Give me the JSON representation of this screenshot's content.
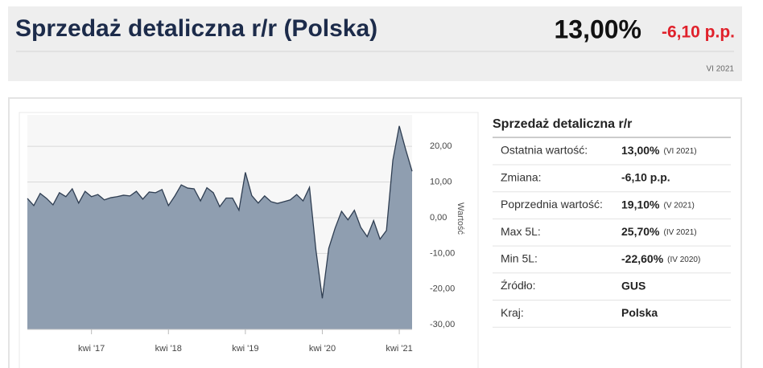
{
  "header": {
    "title": "Sprzedaż detaliczna r/r (Polska)",
    "value": "13,00%",
    "change": "-6,10 p.p.",
    "date": "VI 2021"
  },
  "chart_data": {
    "type": "area",
    "color": "#8f9eb0",
    "line_color": "#2f3e52",
    "grid": true,
    "y_label": "Wartość",
    "x": [
      "2016-06",
      "2016-07",
      "2016-08",
      "2016-09",
      "2016-10",
      "2016-11",
      "2016-12",
      "2017-01",
      "2017-02",
      "2017-03",
      "2017-04",
      "2017-05",
      "2017-06",
      "2017-07",
      "2017-08",
      "2017-09",
      "2017-10",
      "2017-11",
      "2017-12",
      "2018-01",
      "2018-02",
      "2018-03",
      "2018-04",
      "2018-05",
      "2018-06",
      "2018-07",
      "2018-08",
      "2018-09",
      "2018-10",
      "2018-11",
      "2018-12",
      "2019-01",
      "2019-02",
      "2019-03",
      "2019-04",
      "2019-05",
      "2019-06",
      "2019-07",
      "2019-08",
      "2019-09",
      "2019-10",
      "2019-11",
      "2019-12",
      "2020-01",
      "2020-02",
      "2020-03",
      "2020-04",
      "2020-05",
      "2020-06",
      "2020-07",
      "2020-08",
      "2020-09",
      "2020-10",
      "2020-11",
      "2020-12",
      "2021-01",
      "2021-02",
      "2021-03",
      "2021-04",
      "2021-05",
      "2021-06"
    ],
    "values": [
      5.4,
      3.4,
      6.8,
      5.4,
      3.6,
      7.0,
      5.9,
      8.1,
      4.1,
      7.4,
      5.9,
      6.5,
      5.0,
      5.6,
      5.9,
      6.3,
      6.1,
      7.4,
      5.2,
      7.2,
      7.0,
      7.9,
      3.4,
      6.1,
      9.2,
      8.3,
      8.1,
      4.7,
      8.4,
      7.0,
      3.1,
      5.5,
      5.5,
      2.1,
      12.7,
      6.2,
      4.1,
      6.1,
      4.5,
      4.0,
      4.5,
      5.0,
      6.5,
      4.7,
      8.5,
      -9.0,
      -22.6,
      -8.6,
      -2.9,
      1.8,
      -0.6,
      2.1,
      -2.7,
      -5.3,
      -0.8,
      -6.0,
      -3.6,
      16.1,
      25.7,
      19.1,
      13.0
    ],
    "xlim": [
      "2016-06",
      "2021-06"
    ],
    "xticks": [
      {
        "value": "2017-04",
        "label": "kwi '17"
      },
      {
        "value": "2018-04",
        "label": "kwi '18"
      },
      {
        "value": "2019-04",
        "label": "kwi '19"
      },
      {
        "value": "2020-04",
        "label": "kwi '20"
      },
      {
        "value": "2021-04",
        "label": "kwi '21"
      }
    ],
    "ylim": [
      -31.3,
      28.8
    ],
    "yticks": [
      {
        "value": 20,
        "label": "20,00"
      },
      {
        "value": 10,
        "label": "10,00"
      },
      {
        "value": 0,
        "label": "0,00"
      },
      {
        "value": -10,
        "label": "-10,00"
      },
      {
        "value": -20,
        "label": "-20,00"
      },
      {
        "value": -30,
        "label": "-30,00"
      }
    ]
  },
  "table": {
    "title": "Sprzedaż detaliczna r/r",
    "rows": [
      {
        "label": "Ostatnia wartość:",
        "value": "13,00%",
        "note": "(VI 2021)"
      },
      {
        "label": "Zmiana:",
        "value": "-6,10 p.p."
      },
      {
        "label": "Poprzednia wartość:",
        "value": "19,10%",
        "note": "(V 2021)"
      },
      {
        "label": "Max 5L:",
        "value": "25,70%",
        "note": "(IV 2021)"
      },
      {
        "label": "Min 5L:",
        "value": "-22,60%",
        "note": "(IV 2020)"
      },
      {
        "label": "Źródło:",
        "value": "GUS"
      },
      {
        "label": "Kraj:",
        "value": "Polska"
      }
    ]
  }
}
